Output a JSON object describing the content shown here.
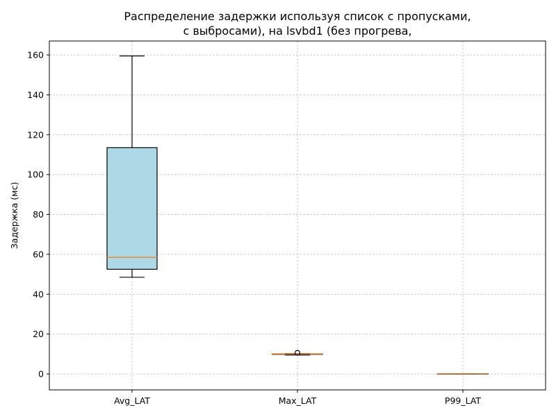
{
  "chart_data": {
    "type": "box",
    "title_lines": [
      "Распределение задержки используя список с пропусками,",
      "с выбросами), на lsvbd1 (без прогрева,"
    ],
    "xlabel": "",
    "ylabel": "Задержка (мс)",
    "ylim": [
      -8,
      167
    ],
    "yticks": [
      0,
      20,
      40,
      60,
      80,
      100,
      120,
      140,
      160
    ],
    "grid": true,
    "categories": [
      "Avg_LAT",
      "Max_LAT",
      "P99_LAT"
    ],
    "boxes": [
      {
        "name": "Avg_LAT",
        "whisker_low": 48.5,
        "q1": 52.5,
        "median": 58.5,
        "q3": 113.5,
        "whisker_high": 159.5,
        "outliers": []
      },
      {
        "name": "Max_LAT",
        "whisker_low": 9.5,
        "q1": 9.8,
        "median": 10.0,
        "q3": 10.1,
        "whisker_high": 10.2,
        "outliers": [
          10.6
        ]
      },
      {
        "name": "P99_LAT",
        "whisker_low": 0.1,
        "q1": 0.1,
        "median": 0.1,
        "q3": 0.1,
        "whisker_high": 0.1,
        "outliers": []
      }
    ],
    "colors": {
      "box_fill": "#add8e6",
      "median": "#e8893a",
      "edge": "#000000",
      "grid": "#b0b0b0"
    }
  }
}
